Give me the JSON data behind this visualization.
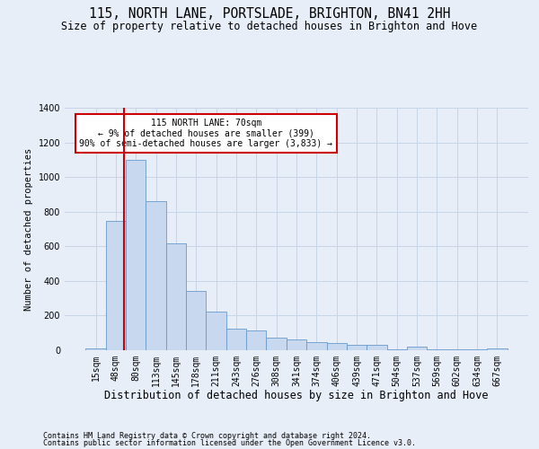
{
  "title": "115, NORTH LANE, PORTSLADE, BRIGHTON, BN41 2HH",
  "subtitle": "Size of property relative to detached houses in Brighton and Hove",
  "xlabel": "Distribution of detached houses by size in Brighton and Hove",
  "ylabel": "Number of detached properties",
  "footer1": "Contains HM Land Registry data © Crown copyright and database right 2024.",
  "footer2": "Contains public sector information licensed under the Open Government Licence v3.0.",
  "categories": [
    "15sqm",
    "48sqm",
    "80sqm",
    "113sqm",
    "145sqm",
    "178sqm",
    "211sqm",
    "243sqm",
    "276sqm",
    "308sqm",
    "341sqm",
    "374sqm",
    "406sqm",
    "439sqm",
    "471sqm",
    "504sqm",
    "537sqm",
    "569sqm",
    "602sqm",
    "634sqm",
    "667sqm"
  ],
  "values": [
    10,
    748,
    1100,
    862,
    618,
    340,
    222,
    125,
    115,
    75,
    63,
    48,
    42,
    32,
    30,
    6,
    22,
    4,
    6,
    6,
    11
  ],
  "bar_color": "#c8d9ef",
  "bar_edge_color": "#6699cc",
  "bar_linewidth": 0.6,
  "grid_color": "#c8d4e8",
  "bg_color": "#e8eef8",
  "ylim": [
    0,
    1400
  ],
  "red_line_x": 1.4,
  "annotation_text": "115 NORTH LANE: 70sqm\n← 9% of detached houses are smaller (399)\n90% of semi-detached houses are larger (3,833) →",
  "annotation_box_color": "#ffffff",
  "annotation_border_color": "#cc0000",
  "annotation_fontsize": 7,
  "title_fontsize": 10.5,
  "subtitle_fontsize": 8.5,
  "xlabel_fontsize": 8.5,
  "ylabel_fontsize": 7.5,
  "tick_fontsize": 7,
  "footer_fontsize": 6
}
